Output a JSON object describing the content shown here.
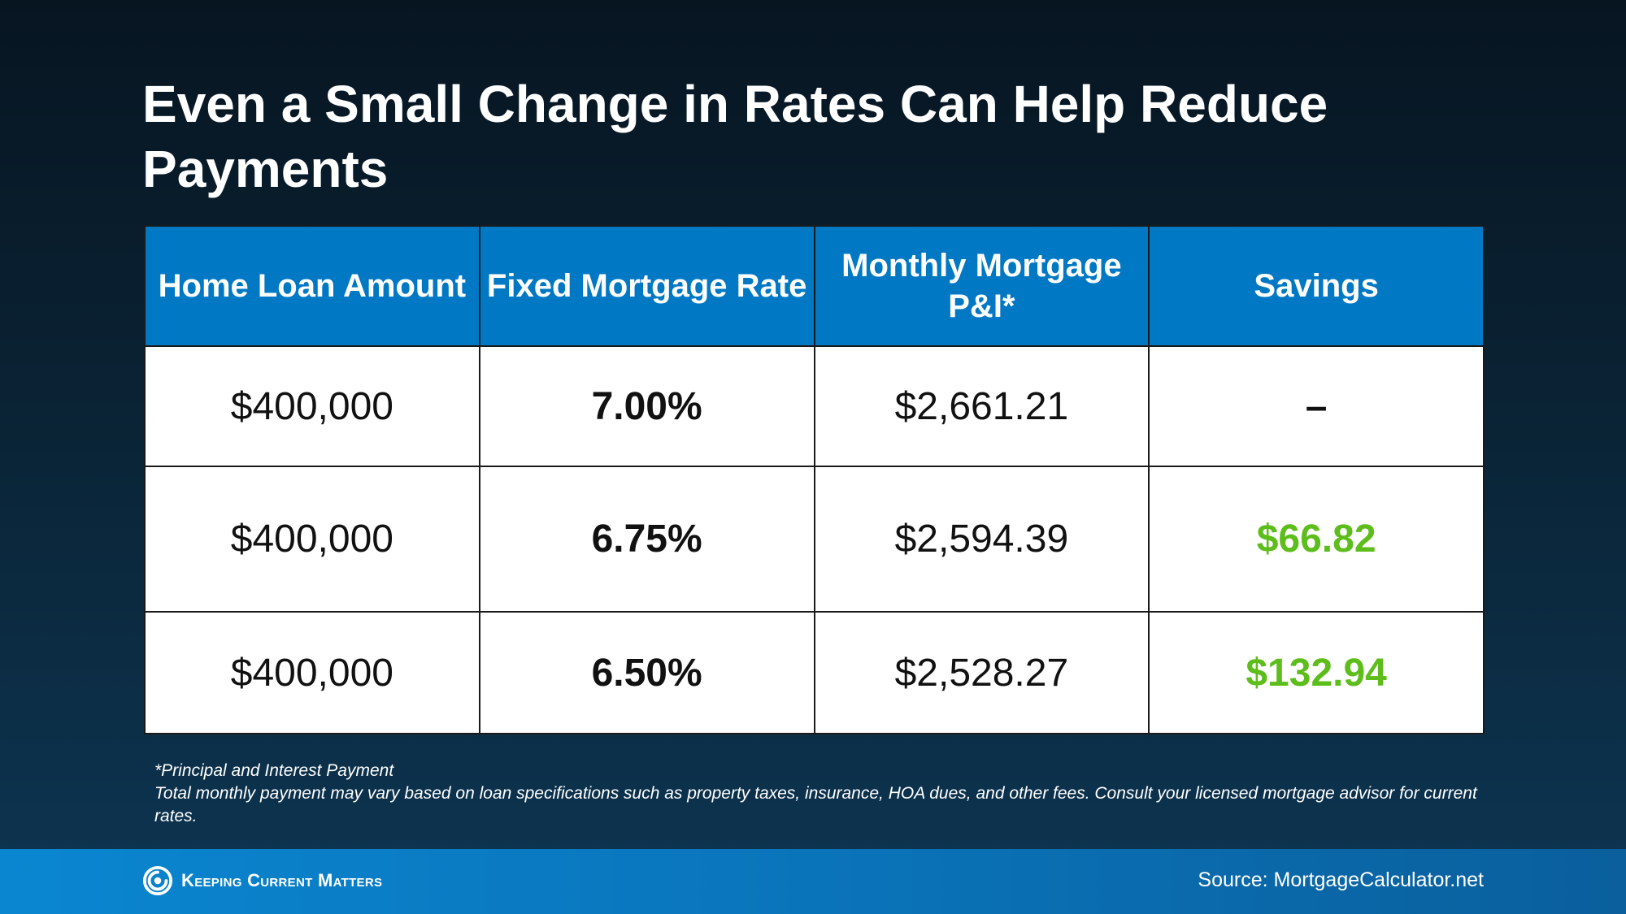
{
  "title": "Even a Small Change in Rates Can Help Reduce Payments",
  "table": {
    "headers": {
      "loan": "Home Loan Amount",
      "rate": "Fixed Mortgage Rate",
      "payment": "Monthly Mortgage P&I*",
      "savings": "Savings"
    },
    "rows": [
      {
        "loan": "$400,000",
        "rate": "7.00%",
        "payment": "$2,661.21",
        "savings": "–"
      },
      {
        "loan": "$400,000",
        "rate": "6.75%",
        "payment": "$2,594.39",
        "savings": "$66.82"
      },
      {
        "loan": "$400,000",
        "rate": "6.50%",
        "payment": "$2,528.27",
        "savings": "$132.94"
      }
    ]
  },
  "footnote": {
    "line1": "*Principal and Interest Payment",
    "line2": "Total monthly payment may vary based on loan specifications such as property taxes, insurance, HOA dues, and other fees. Consult your licensed mortgage advisor for current rates."
  },
  "footer": {
    "brand": "Keeping Current Matters",
    "logo_icon": "kcm-swirl-icon",
    "source": "Source: MortgageCalculator.net"
  },
  "colors": {
    "header_blue": "#0078c4",
    "savings_green": "#5dbd1b",
    "background_dark": "#071521"
  }
}
